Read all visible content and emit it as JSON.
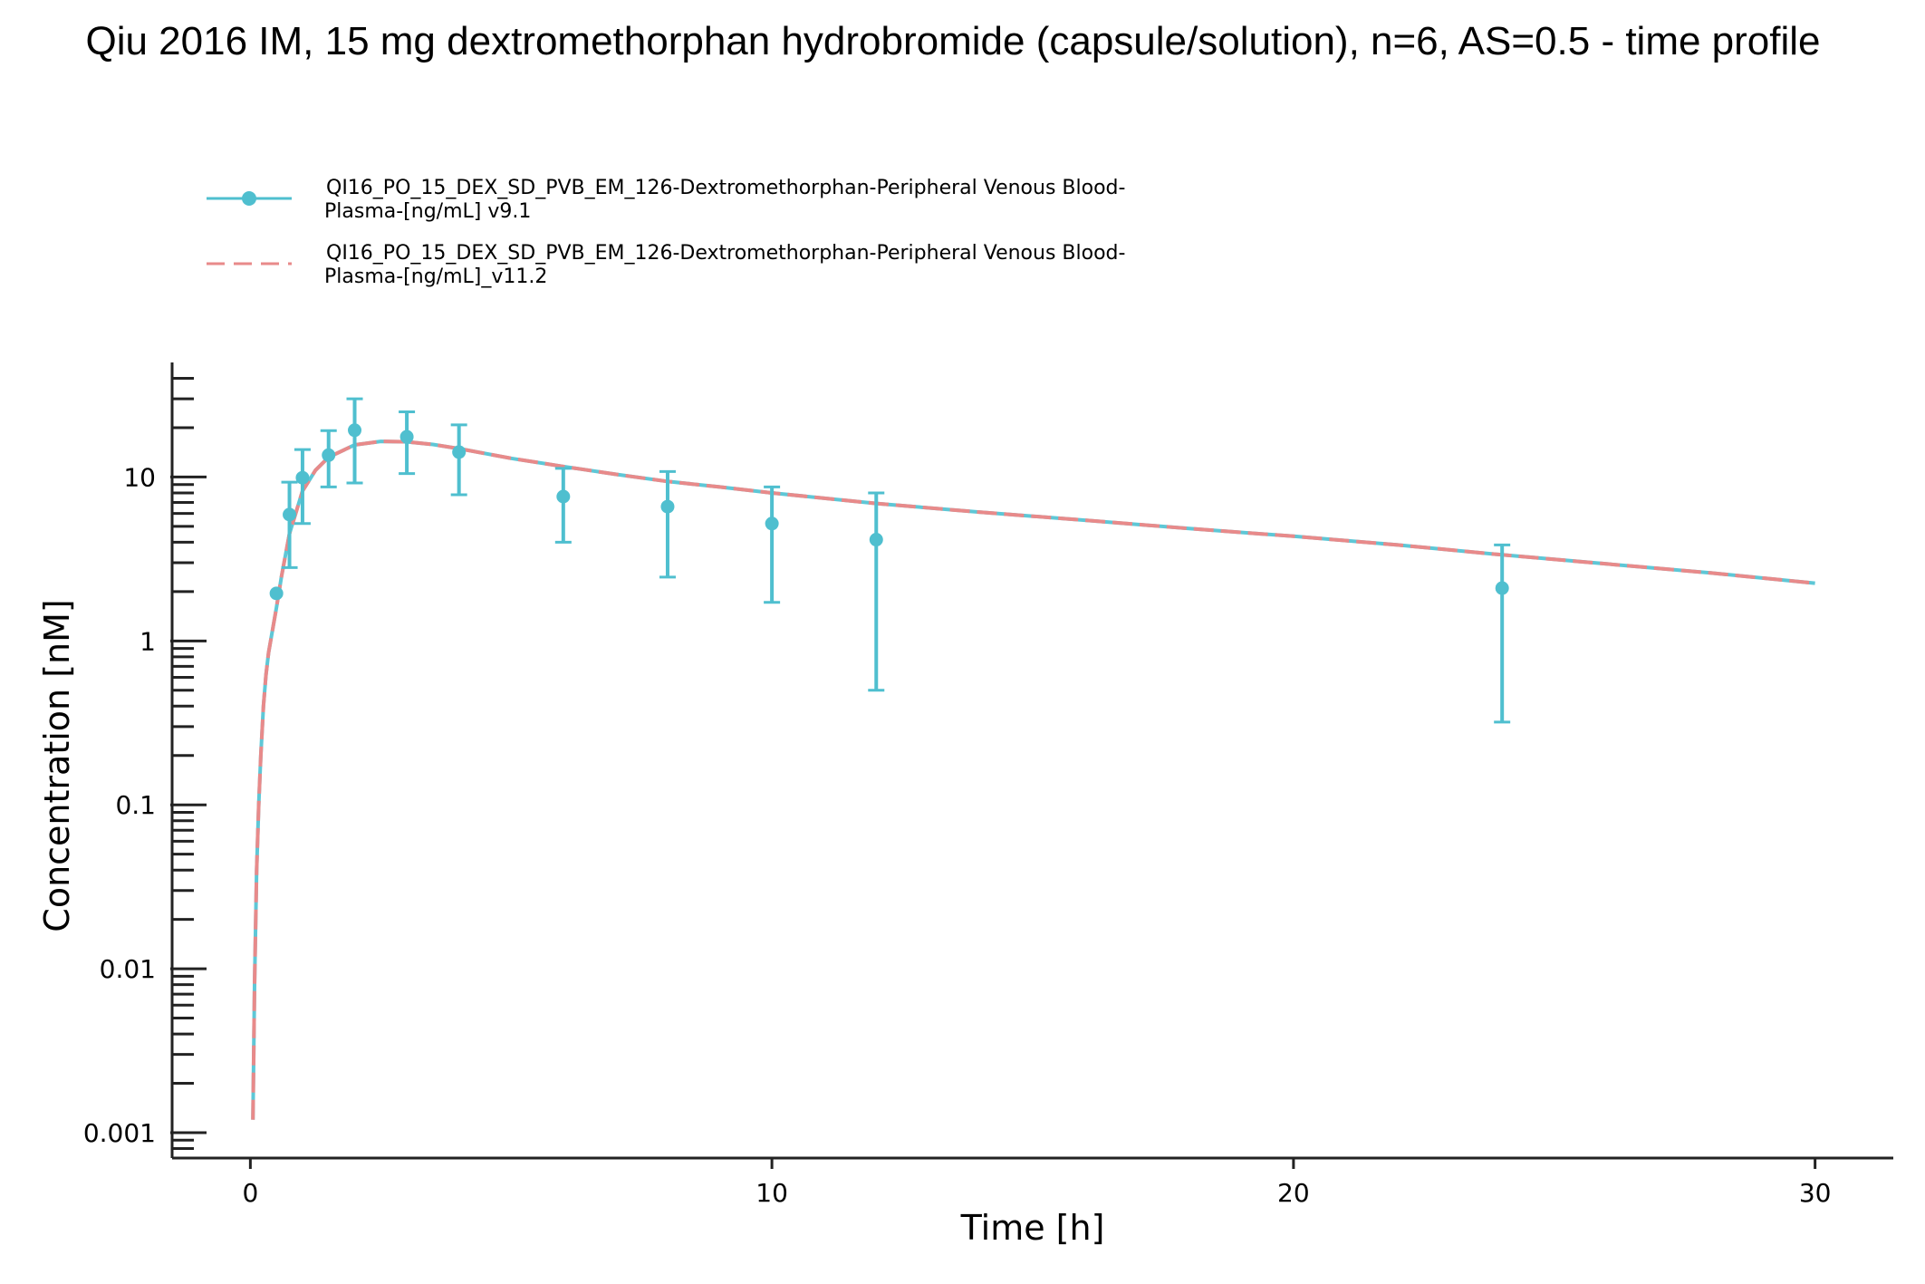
{
  "chart_data": {
    "type": "line",
    "title": "Qiu 2016 IM, 15 mg dextromethorphan hydrobromide (capsule/solution), n=6, AS=0.5 - time profile",
    "xlabel": "Time [h]",
    "ylabel": "Concentration [nM]",
    "xlim": [
      -1.5,
      31.5
    ],
    "ylim": [
      0.0007,
      50
    ],
    "yscale": "log",
    "x_ticks": [
      0,
      10,
      20,
      30
    ],
    "x_tick_labels": [
      "0",
      "10",
      "20",
      "30"
    ],
    "y_ticks": [
      0.001,
      0.01,
      0.1,
      1,
      10
    ],
    "y_tick_labels": [
      "0.001",
      "0.01",
      "0.1",
      "1",
      "10"
    ],
    "grid": false,
    "legend_position": "top-left",
    "colors": {
      "observed": "#4fbfcf",
      "simulated_v112": "#e88a8a",
      "simulated_v91": "#5ec7d6",
      "axis": "#222222"
    },
    "series": [
      {
        "name": "QI16_PO_15_DEX_SD_PVB_EM_126-Dextromethorphan-Peripheral Venous Blood-Plasma-[ng/mL] v9.1",
        "legend_lines": [
          "QI16_PO_15_DEX_SD_PVB_EM_126-Dextromethorphan-Peripheral Venous Blood-",
          "Plasma-[ng/mL] v9.1"
        ],
        "kind": "observed",
        "points": [
          {
            "x": 0.5,
            "y": 1.95,
            "lo": null,
            "hi": null
          },
          {
            "x": 0.75,
            "y": 5.9,
            "lo": 2.8,
            "hi": 9.3
          },
          {
            "x": 1.0,
            "y": 9.9,
            "lo": 5.2,
            "hi": 14.7
          },
          {
            "x": 1.5,
            "y": 13.6,
            "lo": 8.7,
            "hi": 19.2
          },
          {
            "x": 2.0,
            "y": 19.3,
            "lo": 9.2,
            "hi": 30.0
          },
          {
            "x": 3.0,
            "y": 17.6,
            "lo": 10.5,
            "hi": 25.0
          },
          {
            "x": 4.0,
            "y": 14.2,
            "lo": 7.8,
            "hi": 20.8
          },
          {
            "x": 6.0,
            "y": 7.6,
            "lo": 4.0,
            "hi": 11.3
          },
          {
            "x": 8.0,
            "y": 6.6,
            "lo": 2.45,
            "hi": 10.8
          },
          {
            "x": 10.0,
            "y": 5.2,
            "lo": 1.72,
            "hi": 8.7
          },
          {
            "x": 12.0,
            "y": 4.15,
            "lo": 0.5,
            "hi": 8.0
          },
          {
            "x": 24.0,
            "y": 2.1,
            "lo": 0.32,
            "hi": 3.85
          }
        ]
      },
      {
        "name": "QI16_PO_15_DEX_SD_PVB_EM_126-Dextromethorphan-Peripheral Venous Blood-Plasma-[ng/mL]_v11.2",
        "legend_lines": [
          "QI16_PO_15_DEX_SD_PVB_EM_126-Dextromethorphan-Peripheral Venous Blood-",
          "Plasma-[ng/mL]_v11.2"
        ],
        "kind": "simulated",
        "x": [
          0.05,
          0.08,
          0.12,
          0.16,
          0.2,
          0.25,
          0.3,
          0.35,
          0.4,
          0.5,
          0.6,
          0.75,
          1.0,
          1.25,
          1.5,
          2.0,
          2.5,
          3.0,
          3.5,
          4.0,
          5.0,
          6.0,
          7.0,
          8.0,
          9.0,
          10.0,
          12.0,
          14.0,
          16.0,
          18.0,
          20.0,
          22.0,
          24.0,
          26.0,
          28.0,
          30.0
        ],
        "y": [
          0.0012,
          0.008,
          0.04,
          0.1,
          0.2,
          0.4,
          0.62,
          0.85,
          1.05,
          1.6,
          2.5,
          4.5,
          8.2,
          11.0,
          13.2,
          15.7,
          16.5,
          16.4,
          15.8,
          14.9,
          13.0,
          11.6,
          10.4,
          9.4,
          8.7,
          8.0,
          6.9,
          6.1,
          5.45,
          4.85,
          4.35,
          3.85,
          3.35,
          2.95,
          2.6,
          2.25
        ]
      }
    ]
  }
}
